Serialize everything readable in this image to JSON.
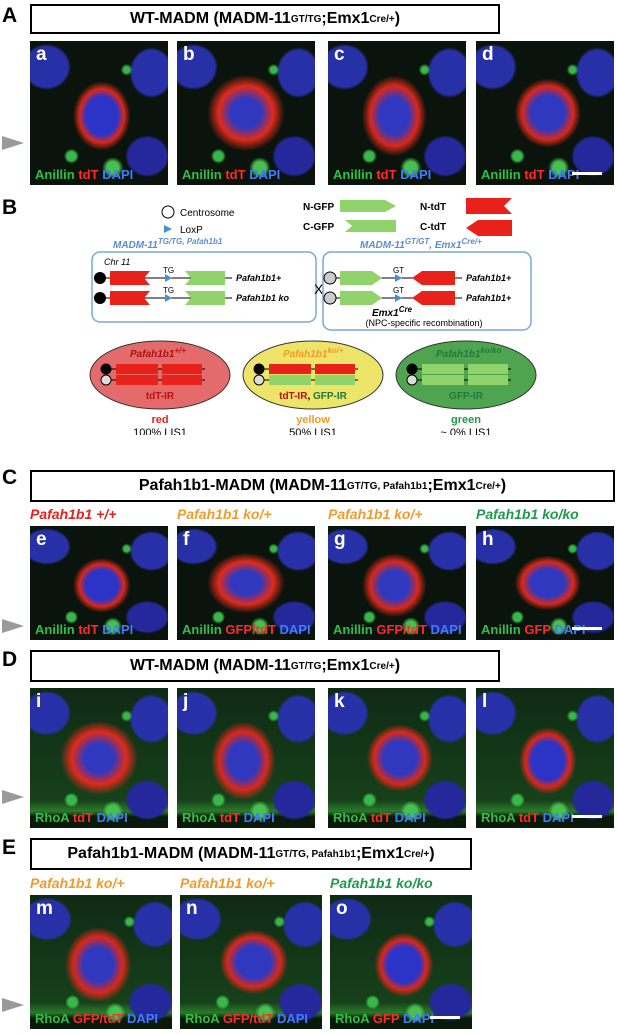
{
  "panel_A": {
    "label": "A",
    "title": [
      "WT-MADM (MADM-11",
      "GT/TG",
      ";Emx1",
      "Cre/+",
      ")"
    ],
    "images": [
      "a",
      "b",
      "c",
      "d"
    ],
    "stain": [
      "Anillin",
      "tdT",
      "DAPI"
    ]
  },
  "panel_B": {
    "label": "B",
    "legend": {
      "centrosome": "Centrosome",
      "loxp": "LoxP",
      "n_gfp": "N-GFP",
      "c_gfp": "C-GFP",
      "n_tdt": "N-tdT",
      "c_tdt": "C-tdT"
    },
    "left_box": {
      "title": [
        "MADM-11",
        "TG/TG, Pafah1b1"
      ],
      "chr": "Chr 11",
      "site": "TG",
      "allele1": "Pafah1b1+",
      "allele2": "Pafah1b1 ko"
    },
    "cross": "X",
    "right_box": {
      "title": [
        "MADM-11",
        "GT/GT",
        ", Emx1",
        "Cre/+"
      ],
      "site": "GT",
      "allele1": "Pafah1b1+",
      "allele2": "Pafah1b1+",
      "driver": [
        "Emx1",
        "Cre"
      ],
      "note": "(NPC-specific recombination)"
    },
    "outcomes": [
      {
        "genotype": [
          "Pafah1b1",
          "+/+"
        ],
        "ir": [
          "tdT-IR"
        ],
        "color": "red",
        "lis1": "100% LIS1"
      },
      {
        "genotype": [
          "Pafah1b1",
          "ko/+"
        ],
        "ir": [
          "tdT-IR",
          ", ",
          "GFP-IR"
        ],
        "color": "yellow",
        "lis1": "50% LIS1"
      },
      {
        "genotype": [
          "Pafah1b1",
          "ko/ko"
        ],
        "ir": [
          "GFP-IR"
        ],
        "color": "green",
        "lis1": "~ 0% LIS1"
      }
    ]
  },
  "panel_C": {
    "label": "C",
    "title": [
      "Pafah1b1-MADM (MADM-11",
      "GT/TG, Pafah1b1",
      ";Emx1",
      "Cre/+",
      ")"
    ],
    "images": [
      {
        "letter": "e",
        "genotype": "Pafah1b1 +/+",
        "stain": [
          "Anillin",
          "tdT",
          "DAPI"
        ]
      },
      {
        "letter": "f",
        "genotype": "Pafah1b1 ko/+",
        "stain": [
          "Anillin",
          "GFP/tdT",
          "DAPI"
        ]
      },
      {
        "letter": "g",
        "genotype": "Pafah1b1 ko/+",
        "stain": [
          "Anillin",
          "GFP/tdT",
          "DAPI"
        ]
      },
      {
        "letter": "h",
        "genotype": "Pafah1b1 ko/ko",
        "stain": [
          "Anillin",
          "GFP",
          "DAPI"
        ]
      }
    ]
  },
  "panel_D": {
    "label": "D",
    "title": [
      "WT-MADM (MADM-11",
      "GT/TG",
      ";Emx1",
      "Cre/+",
      ")"
    ],
    "images": [
      "i",
      "j",
      "k",
      "l"
    ],
    "stain": [
      "RhoA",
      "tdT",
      "DAPI"
    ]
  },
  "panel_E": {
    "label": "E",
    "title": [
      "Pafah1b1-MADM (MADM-11",
      "GT/TG, Pafah1b1",
      ";Emx1",
      "Cre/+",
      ")"
    ],
    "images": [
      {
        "letter": "m",
        "genotype": "Pafah1b1 ko/+",
        "stain": [
          "RhoA",
          "GFP/tdT",
          "DAPI"
        ]
      },
      {
        "letter": "n",
        "genotype": "Pafah1b1 ko/+",
        "stain": [
          "RhoA",
          "GFP/tdT",
          "DAPI"
        ]
      },
      {
        "letter": "o",
        "genotype": "Pafah1b1 ko/ko",
        "stain": [
          "RhoA",
          "GFP",
          "DAPI"
        ]
      }
    ]
  }
}
